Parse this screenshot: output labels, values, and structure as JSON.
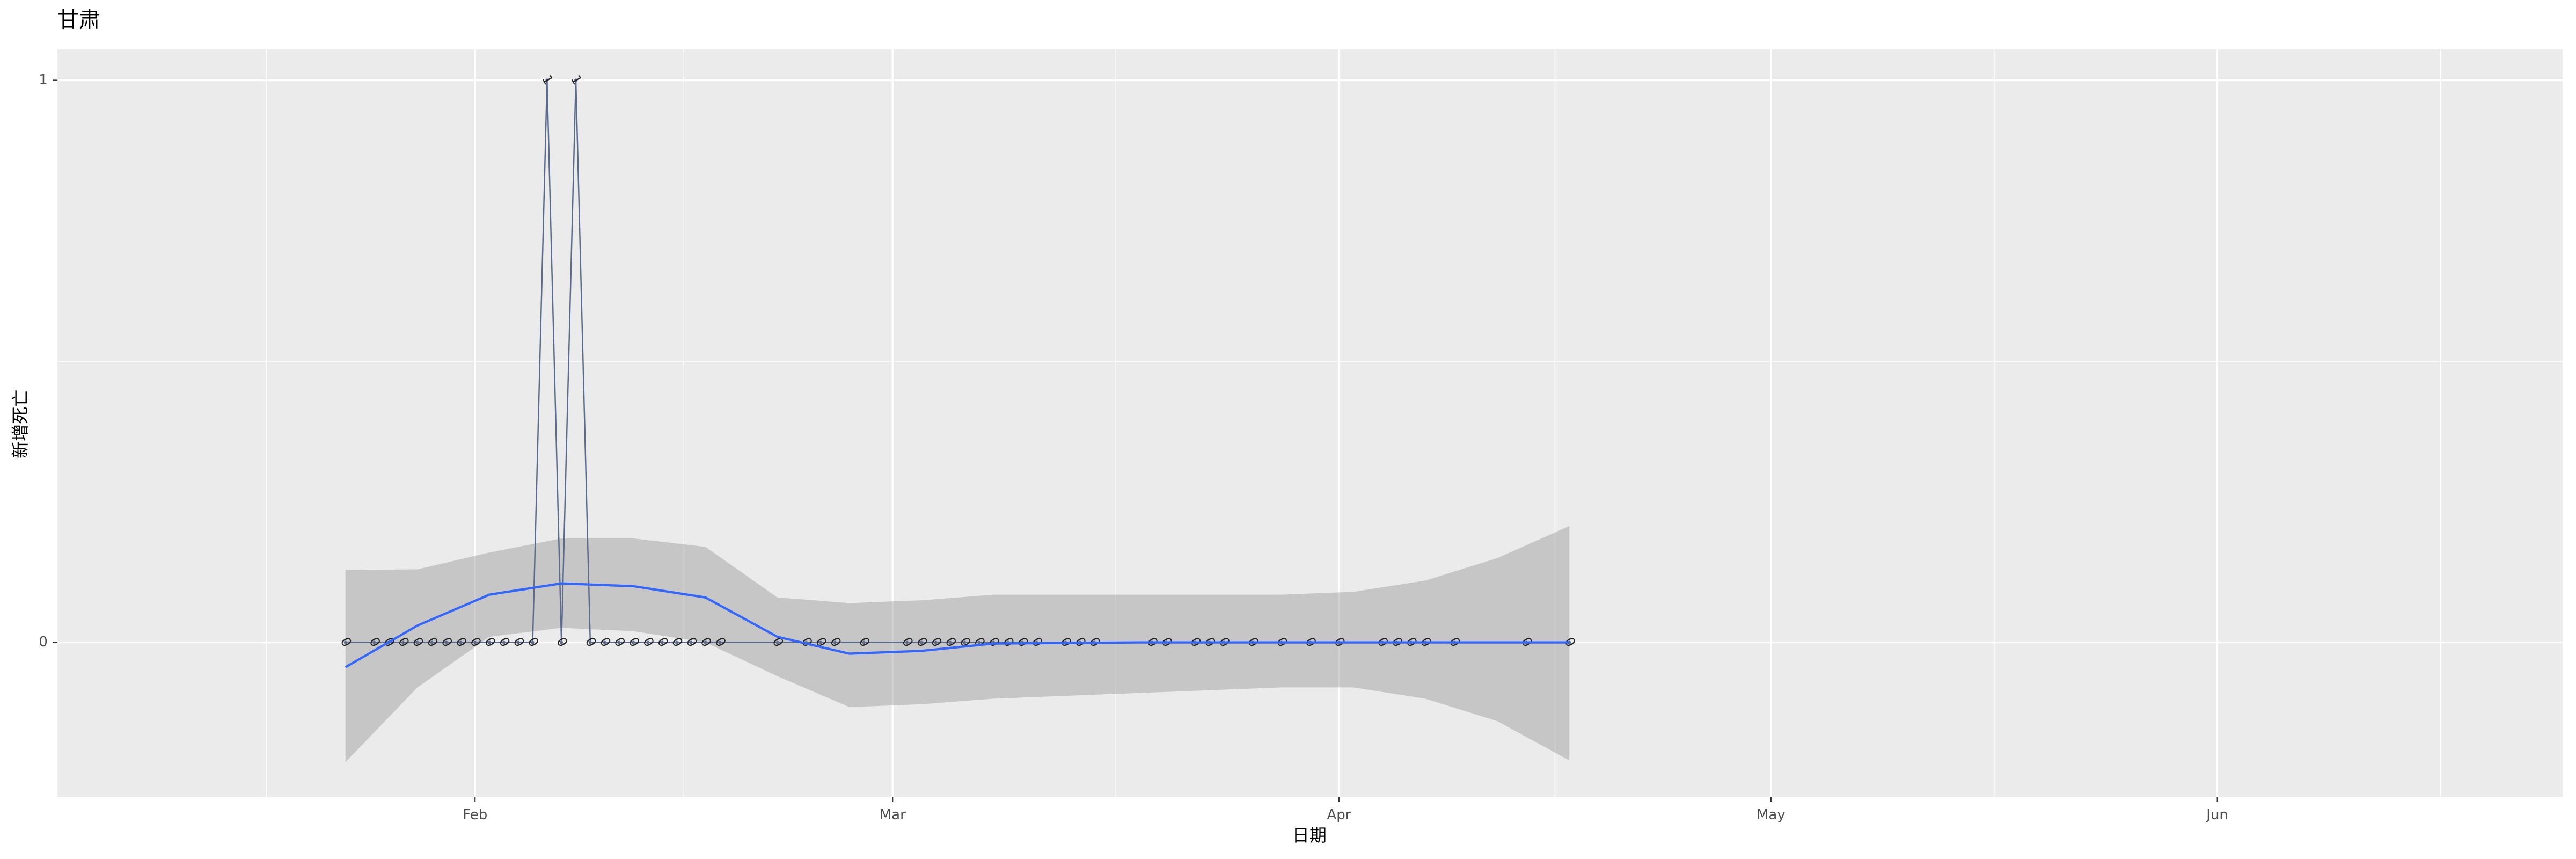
{
  "chart_data": {
    "type": "line",
    "title": "甘肃",
    "x_label": "日期",
    "y_label": "新增死亡",
    "x": [
      "01-23",
      "01-25",
      "01-26",
      "01-27",
      "01-28",
      "01-29",
      "01-30",
      "01-31",
      "02-01",
      "02-02",
      "02-03",
      "02-04",
      "02-05",
      "02-06",
      "02-07",
      "02-08",
      "02-09",
      "02-10",
      "02-11",
      "02-12",
      "02-13",
      "02-14",
      "02-15",
      "02-16",
      "02-17",
      "02-18",
      "02-22",
      "02-24",
      "02-25",
      "02-26",
      "02-28",
      "03-02",
      "03-03",
      "03-04",
      "03-05",
      "03-06",
      "03-07",
      "03-08",
      "03-09",
      "03-10",
      "03-11",
      "03-13",
      "03-14",
      "03-15",
      "03-19",
      "03-20",
      "03-22",
      "03-23",
      "03-24",
      "03-26",
      "03-28",
      "03-30",
      "04-01",
      "04-04",
      "04-05",
      "04-06",
      "04-07",
      "04-09",
      "04-14",
      "04-17"
    ],
    "series": [
      {
        "name": "新增死亡",
        "color": "#5b6b8c",
        "values": [
          0,
          0,
          0,
          0,
          0,
          0,
          0,
          0,
          0,
          0,
          0,
          0,
          0,
          1,
          0,
          1,
          0,
          0,
          0,
          0,
          0,
          0,
          0,
          0,
          0,
          0,
          0,
          0,
          0,
          0,
          0,
          0,
          0,
          0,
          0,
          0,
          0,
          0,
          0,
          0,
          0,
          0,
          0,
          0,
          0,
          0,
          0,
          0,
          0,
          0,
          0,
          0,
          0,
          0,
          0,
          0,
          0,
          0,
          0,
          0
        ]
      }
    ],
    "smooth": {
      "color": "#3366ff",
      "band_color": "#999999",
      "x": [
        "01-23",
        "01-28",
        "02-02",
        "02-07",
        "02-12",
        "02-17",
        "02-22",
        "02-27",
        "03-03",
        "03-08",
        "03-18",
        "03-28",
        "04-02",
        "04-07",
        "04-12",
        "04-17"
      ],
      "values": [
        -0.044,
        0.03,
        0.085,
        0.105,
        0.1,
        0.08,
        0.01,
        -0.02,
        -0.015,
        -0.002,
        0,
        0,
        0,
        0,
        0,
        0
      ],
      "lower": [
        -0.213,
        -0.08,
        0.01,
        0.026,
        0.02,
        0.0,
        -0.06,
        -0.115,
        -0.11,
        -0.1,
        -0.09,
        -0.08,
        -0.08,
        -0.1,
        -0.14,
        -0.21
      ],
      "upper": [
        0.129,
        0.13,
        0.16,
        0.185,
        0.185,
        0.17,
        0.08,
        0.07,
        0.075,
        0.085,
        0.085,
        0.085,
        0.09,
        0.11,
        0.15,
        0.207
      ]
    },
    "xlim": [
      "01-03",
      "06-25"
    ],
    "xticks": [
      {
        "value": "02-01",
        "label": "Feb"
      },
      {
        "value": "03-01",
        "label": "Mar"
      },
      {
        "value": "04-01",
        "label": "Apr"
      },
      {
        "value": "05-01",
        "label": "May"
      },
      {
        "value": "06-01",
        "label": "Jun"
      }
    ],
    "ylim": [
      -0.275,
      1.055
    ],
    "yticks": [
      0,
      1
    ],
    "grid": true
  }
}
